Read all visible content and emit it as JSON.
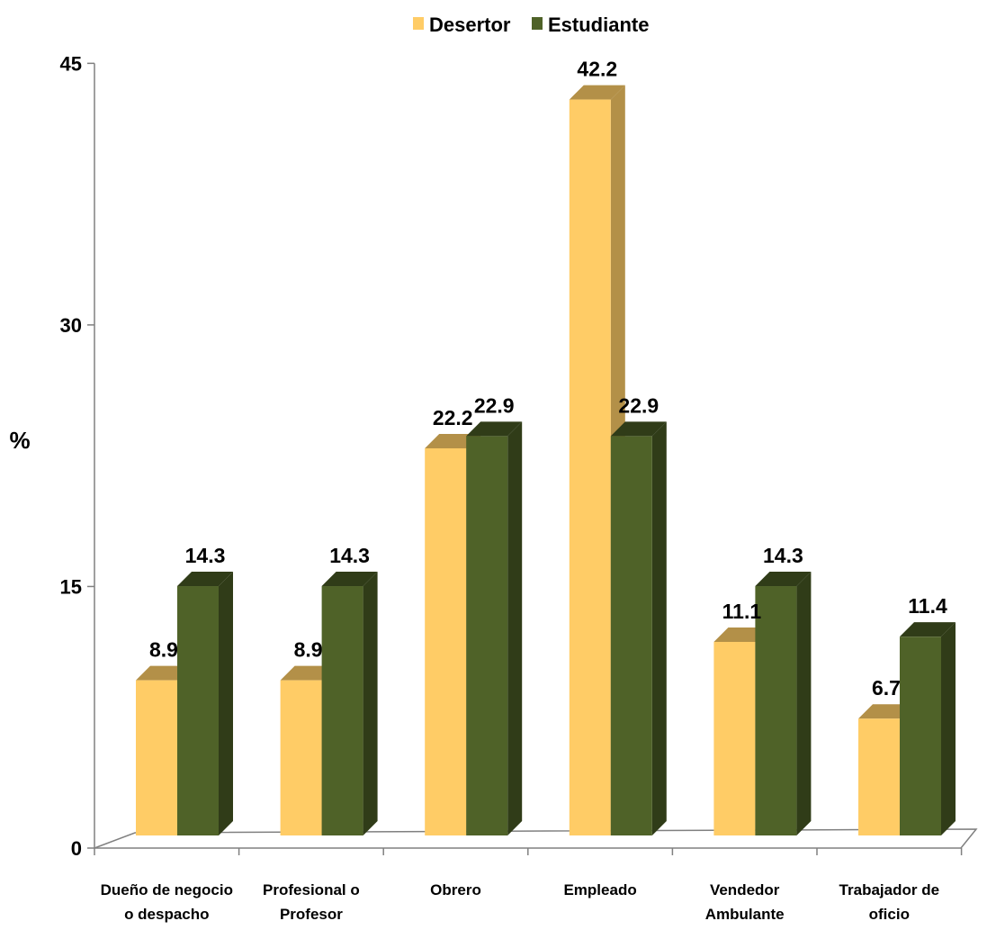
{
  "chart_data": {
    "type": "bar",
    "title": "",
    "xlabel": "",
    "ylabel": "%",
    "ylim": [
      0,
      45
    ],
    "yticks": [
      0,
      15,
      30,
      45
    ],
    "grid": false,
    "legend_position": "top-center",
    "categories": [
      [
        "Dueño de negocio",
        "o despacho"
      ],
      [
        "Profesional o",
        "Profesor"
      ],
      [
        "Obrero"
      ],
      [
        "Empleado"
      ],
      [
        "Vendedor",
        "Ambulante"
      ],
      [
        "Trabajador de",
        "oficio"
      ]
    ],
    "series": [
      {
        "name": "Desertor",
        "color": "#FFCC66",
        "side_color": "#B39048",
        "values": [
          8.9,
          8.9,
          22.2,
          42.2,
          11.1,
          6.7
        ],
        "labels": [
          "8.9",
          "8.9",
          "22.2",
          "42.2",
          "11.1",
          "6.7"
        ]
      },
      {
        "name": "Estudiante",
        "color": "#4F6228",
        "side_color": "#303C18",
        "values": [
          14.3,
          14.3,
          22.9,
          22.9,
          14.3,
          11.4
        ],
        "labels": [
          "14.3",
          "14.3",
          "22.9",
          "22.9",
          "14.3",
          "11.4"
        ]
      }
    ]
  }
}
